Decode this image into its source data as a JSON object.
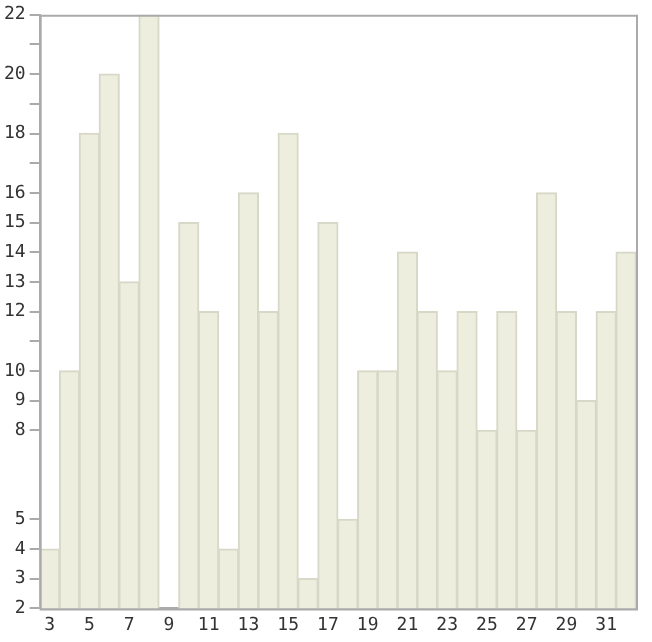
{
  "chart_data": {
    "type": "bar",
    "categories": [
      "3",
      null,
      "5",
      null,
      "7",
      null,
      "9",
      null,
      "11",
      null,
      "13",
      null,
      "15",
      null,
      "17",
      null,
      "19",
      null,
      "21",
      null,
      "23",
      null,
      "25",
      null,
      "27",
      null,
      "29",
      null,
      "31",
      null
    ],
    "values": [
      4,
      10,
      18,
      20,
      13,
      22,
      null,
      15,
      12,
      4,
      16,
      12,
      18,
      3,
      15,
      5,
      10,
      10,
      14,
      12,
      10,
      12,
      8,
      12,
      8,
      16,
      12,
      9,
      12,
      14
    ],
    "color": "#eeeedf",
    "ylim": [
      2,
      22
    ],
    "yticks": [
      2,
      3,
      4,
      5,
      8,
      9,
      10,
      {
        "value": 11,
        "label": null
      },
      12,
      13,
      14,
      15,
      16,
      {
        "value": 17,
        "label": null
      },
      18,
      {
        "value": 19,
        "label": null
      },
      20,
      {
        "value": 21,
        "label": null
      },
      22
    ],
    "grid": false,
    "legend": false
  }
}
